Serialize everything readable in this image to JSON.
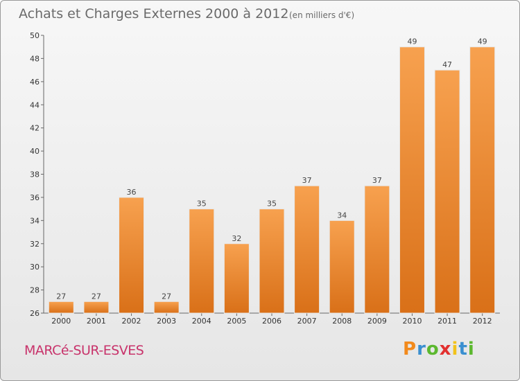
{
  "chart_data": {
    "type": "bar",
    "title": "Achats et Charges Externes 2000 à 2012",
    "subtitle": "(en milliers d'€)",
    "categories": [
      "2000",
      "2001",
      "2002",
      "2003",
      "2004",
      "2005",
      "2006",
      "2007",
      "2008",
      "2009",
      "2010",
      "2011",
      "2012"
    ],
    "values": [
      27,
      27,
      36,
      27,
      35,
      32,
      35,
      37,
      34,
      37,
      49,
      47,
      49
    ],
    "ylim": [
      26,
      50
    ],
    "yticks": [
      26,
      28,
      30,
      32,
      34,
      36,
      38,
      40,
      42,
      44,
      46,
      48,
      50
    ],
    "grid": false,
    "bar_color": "#f0963e"
  },
  "footer": {
    "town": "MARCé-SUR-ESVES",
    "logo_letters": [
      "P",
      "r",
      "o",
      "x",
      "i",
      "t",
      "i"
    ],
    "logo_colors": [
      "#f28a1c",
      "#3a8fd0",
      "#5cb82f",
      "#e2302f",
      "#f2c21b",
      "#3a8fd0",
      "#5cb82f"
    ]
  }
}
